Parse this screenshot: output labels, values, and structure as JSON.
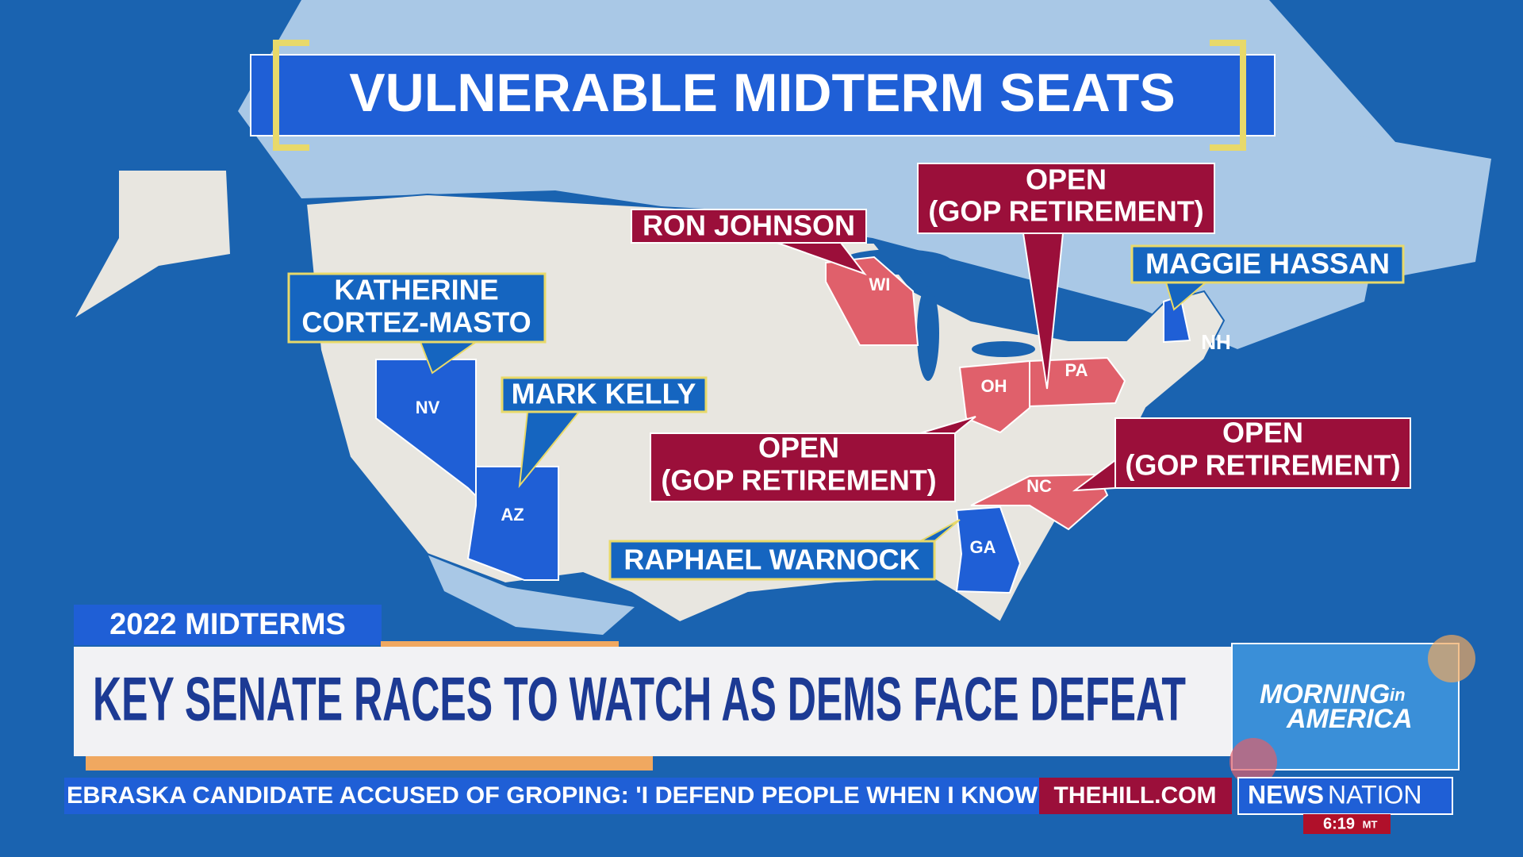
{
  "title": "VULNERABLE MIDTERM SEATS",
  "callouts": [
    {
      "lines": [
        "RON JOHNSON"
      ],
      "state": "WI"
    },
    {
      "lines": [
        "OPEN",
        "(GOP RETIREMENT)"
      ],
      "state": "PA"
    },
    {
      "lines": [
        "MAGGIE HASSAN"
      ],
      "state": "NH"
    },
    {
      "lines": [
        "KATHERINE",
        "CORTEZ-MASTO"
      ],
      "state": "NV"
    },
    {
      "lines": [
        "MARK KELLY"
      ],
      "state": "AZ"
    },
    {
      "lines": [
        "OPEN",
        "(GOP RETIREMENT)"
      ],
      "state": "OH"
    },
    {
      "lines": [
        "OPEN",
        "(GOP RETIREMENT)"
      ],
      "state": "NC"
    },
    {
      "lines": [
        "RAPHAEL WARNOCK"
      ],
      "state": "GA"
    }
  ],
  "chyron": {
    "tag": "2022 MIDTERMS",
    "headline": "KEY SENATE RACES TO WATCH AS DEMS FACE DEFEAT"
  },
  "show_logo": {
    "line1": "MORNING",
    "small": "in",
    "line2": "AMERICA"
  },
  "ticker": {
    "text": "EBRASKA CANDIDATE ACCUSED OF GROPING: 'I DEFEND PEOPLE WHEN I KNOW",
    "source": "THEHILL.COM"
  },
  "network": {
    "bold": "NEWS",
    "light": "NATION"
  },
  "clock": {
    "time": "6:19",
    "zone": "MT"
  }
}
